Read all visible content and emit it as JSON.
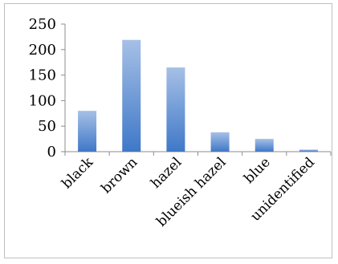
{
  "chart_data": {
    "type": "bar",
    "categories": [
      "black",
      "brown",
      "hazel",
      "blueish hazel",
      "blue",
      "unidentified"
    ],
    "values": [
      80,
      219,
      165,
      38,
      25,
      4
    ],
    "ylim": [
      0,
      250
    ],
    "yticks": [
      "0",
      "50",
      "100",
      "150",
      "200",
      "250"
    ],
    "grid": false,
    "legend": "none",
    "bar_color_top": "#a6c0e6",
    "bar_color_bottom": "#3f78c8"
  }
}
